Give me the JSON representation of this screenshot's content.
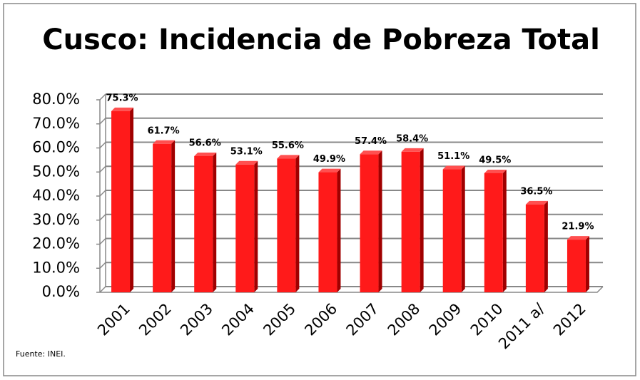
{
  "chart_data": {
    "type": "bar",
    "title": "Cusco: Incidencia de Pobreza Total",
    "categories": [
      "2001",
      "2002",
      "2003",
      "2004",
      "2005",
      "2006",
      "2007",
      "2008",
      "2009",
      "2010",
      "2011 a/",
      "2012"
    ],
    "values": [
      75.3,
      61.7,
      56.6,
      53.1,
      55.6,
      49.9,
      57.4,
      58.4,
      51.1,
      49.5,
      36.5,
      21.9
    ],
    "value_labels": [
      "75.3%",
      "61.7%",
      "56.6%",
      "53.1%",
      "55.6%",
      "49.9%",
      "57.4%",
      "58.4%",
      "51.1%",
      "49.5%",
      "36.5%",
      "21.9%"
    ],
    "color": "#ff1a1a",
    "ylim": [
      0,
      80
    ],
    "yticks": [
      {
        "value": 0,
        "label": "0.0%"
      },
      {
        "value": 10,
        "label": "10.0%"
      },
      {
        "value": 20,
        "label": "20.0%"
      },
      {
        "value": 30,
        "label": "30.0%"
      },
      {
        "value": 40,
        "label": "40.0%"
      },
      {
        "value": 50,
        "label": "50.0%"
      },
      {
        "value": 60,
        "label": "60.0%"
      },
      {
        "value": 70,
        "label": "70.0%"
      },
      {
        "value": 80,
        "label": "80.0%"
      }
    ],
    "grid": true,
    "source": "Fuente: INEI."
  }
}
